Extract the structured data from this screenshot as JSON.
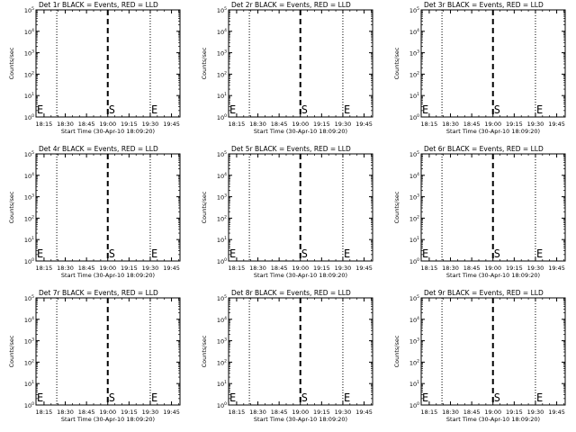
{
  "chart_data": {
    "type": "line",
    "panel_title_suffix": "BLACK = Events, RED = LLD",
    "ylabel": "Counts/sec",
    "xlabel": "Start Time (30-Apr-10 18:09:20)",
    "x_ticks": [
      "18:15",
      "18:30",
      "18:45",
      "19:00",
      "19:15",
      "19:30",
      "19:45"
    ],
    "x_tick_minutes": [
      15,
      30,
      45,
      60,
      75,
      90,
      105
    ],
    "xlim_minutes": [
      9.33,
      111
    ],
    "y_scale": "log",
    "ylim": [
      1,
      100000
    ],
    "y_ticks": [
      {
        "base": "10",
        "exp": "0"
      },
      {
        "base": "10",
        "exp": "1"
      },
      {
        "base": "10",
        "exp": "2"
      },
      {
        "base": "10",
        "exp": "3"
      },
      {
        "base": "10",
        "exp": "4"
      },
      {
        "base": "10",
        "exp": "5"
      }
    ],
    "markers": [
      {
        "label": "E",
        "minute": 9.33,
        "style": "dotted"
      },
      {
        "label": "S",
        "minute": 60,
        "style": "dashed"
      },
      {
        "label": "E",
        "minute": 90,
        "style": "dotted"
      }
    ],
    "extra_dotted_minutes": [
      24,
      111
    ],
    "panels": [
      {
        "label": "Det 1r",
        "series": []
      },
      {
        "label": "Det 2r",
        "series": []
      },
      {
        "label": "Det 3r",
        "series": []
      },
      {
        "label": "Det 4r",
        "series": []
      },
      {
        "label": "Det 5r",
        "series": []
      },
      {
        "label": "Det 6r",
        "series": []
      },
      {
        "label": "Det 7r",
        "series": []
      },
      {
        "label": "Det 8r",
        "series": []
      },
      {
        "label": "Det 9r",
        "series": []
      }
    ]
  },
  "colors": {
    "background": "#ffffff",
    "axes": "#000000",
    "events": "#000000",
    "lld": "#ff0000"
  }
}
